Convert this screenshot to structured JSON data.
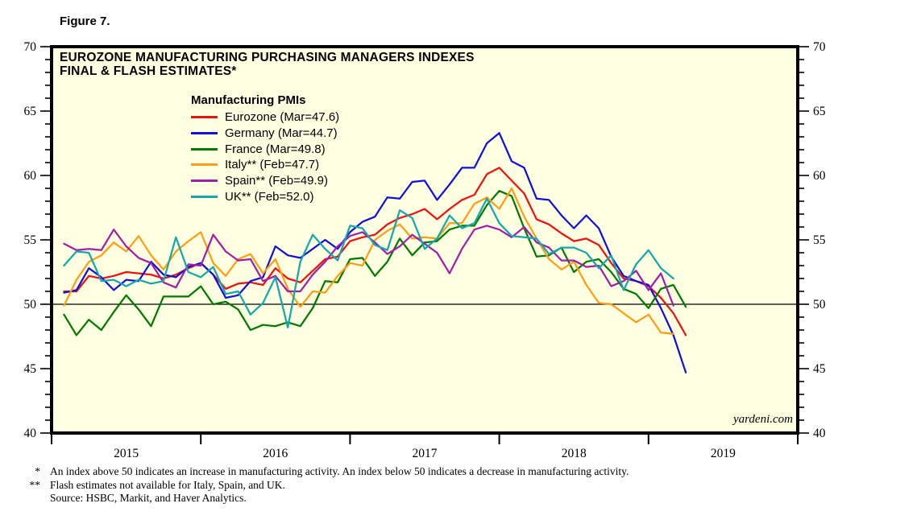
{
  "figure_label": "Figure 7.",
  "chart": {
    "title_line1": "EUROZONE MANUFACTURING PURCHASING MANAGERS INDEXES",
    "title_line2": "FINAL & FLASH ESTIMATES*",
    "legend_title": "Manufacturing PMIs",
    "watermark": "yardeni.com",
    "plot_background": "#FFFFE1",
    "border_color": "#000000",
    "fifty_line_value": 50
  },
  "chart_data": {
    "type": "line",
    "x_unit": "month",
    "x_span": [
      "2015-01",
      "2019-03"
    ],
    "x_axis_months_total": 60,
    "x_tick_years": [
      "2015",
      "2016",
      "2017",
      "2018",
      "2019"
    ],
    "ylim": [
      40,
      70
    ],
    "y_major_step": 5,
    "y_minor_step": 1,
    "grid": "single reference line at 50",
    "legend_position": "top-left inside plot",
    "series": [
      {
        "name": "Eurozone (Mar=47.6)",
        "color": "#EE1111",
        "values": [
          51.0,
          51.0,
          52.2,
          52.0,
          52.2,
          52.5,
          52.4,
          52.3,
          52.0,
          52.3,
          52.8,
          53.2,
          52.3,
          51.2,
          51.6,
          51.7,
          51.5,
          52.8,
          52.0,
          51.7,
          52.6,
          53.5,
          53.7,
          54.9,
          55.2,
          55.4,
          56.2,
          56.7,
          57.0,
          57.4,
          56.6,
          57.4,
          58.1,
          58.5,
          60.1,
          60.6,
          59.6,
          58.6,
          56.6,
          56.2,
          55.5,
          54.9,
          55.1,
          54.6,
          53.2,
          52.0,
          51.8,
          51.4,
          50.5,
          49.3,
          47.6
        ]
      },
      {
        "name": "Germany (Mar=44.7)",
        "color": "#1111DD",
        "values": [
          50.9,
          51.1,
          52.8,
          52.1,
          51.1,
          51.9,
          51.8,
          53.3,
          52.3,
          52.1,
          52.9,
          53.2,
          52.3,
          50.5,
          50.7,
          51.8,
          52.1,
          54.5,
          53.8,
          53.6,
          54.3,
          55.0,
          54.3,
          55.6,
          56.4,
          56.8,
          58.3,
          58.2,
          59.5,
          59.6,
          58.1,
          59.3,
          60.6,
          60.6,
          62.5,
          63.3,
          61.1,
          60.6,
          58.2,
          58.1,
          56.9,
          55.9,
          56.9,
          55.9,
          53.7,
          52.2,
          51.8,
          51.5,
          49.7,
          47.6,
          44.7
        ]
      },
      {
        "name": "France (Mar=49.8)",
        "color": "#007A00",
        "values": [
          49.2,
          47.6,
          48.8,
          48.0,
          49.4,
          50.7,
          49.6,
          48.3,
          50.6,
          50.6,
          50.6,
          51.4,
          50.0,
          50.2,
          49.6,
          48.0,
          48.4,
          48.3,
          48.6,
          48.3,
          49.7,
          51.8,
          51.7,
          53.5,
          53.6,
          52.2,
          53.3,
          55.1,
          53.8,
          54.8,
          54.9,
          55.8,
          56.1,
          56.1,
          57.7,
          58.8,
          58.4,
          55.9,
          53.7,
          53.8,
          54.4,
          52.5,
          53.3,
          53.5,
          52.5,
          51.2,
          50.8,
          49.7,
          51.2,
          51.5,
          49.8
        ]
      },
      {
        "name": "Italy** (Feb=47.7)",
        "color": "#FF9E14",
        "values": [
          49.9,
          51.9,
          53.3,
          53.8,
          54.8,
          54.1,
          55.3,
          53.8,
          52.7,
          54.1,
          54.9,
          55.6,
          53.2,
          52.2,
          53.5,
          53.9,
          52.4,
          53.5,
          51.2,
          49.8,
          51.0,
          50.9,
          52.2,
          53.2,
          53.0,
          55.0,
          55.7,
          56.2,
          55.1,
          55.2,
          55.1,
          56.3,
          56.3,
          57.8,
          58.3,
          57.4,
          59.0,
          56.8,
          55.1,
          53.5,
          52.7,
          53.3,
          51.5,
          50.1,
          50.0,
          49.3,
          48.6,
          49.2,
          47.8,
          47.7
        ]
      },
      {
        "name": "Spain** (Feb=49.9)",
        "color": "#A020A8",
        "values": [
          54.7,
          54.2,
          54.3,
          54.2,
          55.8,
          54.5,
          53.6,
          53.2,
          51.7,
          51.3,
          53.1,
          53.0,
          55.4,
          54.1,
          53.4,
          53.5,
          51.8,
          52.2,
          51.0,
          51.0,
          52.3,
          53.3,
          54.5,
          55.3,
          55.6,
          54.8,
          53.9,
          54.5,
          55.4,
          54.7,
          54.0,
          52.4,
          54.3,
          55.8,
          56.1,
          55.8,
          55.2,
          56.0,
          54.8,
          54.4,
          53.4,
          53.4,
          52.9,
          53.0,
          51.4,
          51.8,
          52.6,
          51.1,
          52.4,
          49.9
        ]
      },
      {
        "name": "UK** (Feb=52.0)",
        "color": "#14A8AC",
        "values": [
          53.0,
          54.1,
          54.0,
          51.8,
          51.9,
          51.4,
          51.9,
          51.6,
          51.8,
          55.2,
          52.5,
          52.1,
          52.9,
          50.8,
          51.0,
          49.2,
          50.1,
          52.1,
          48.2,
          53.3,
          55.4,
          54.3,
          53.4,
          56.1,
          55.9,
          54.6,
          54.2,
          57.3,
          56.7,
          54.3,
          55.1,
          56.9,
          55.9,
          56.3,
          58.2,
          56.3,
          55.3,
          55.2,
          55.1,
          53.9,
          54.4,
          54.4,
          54.0,
          52.8,
          53.8,
          51.1,
          53.1,
          54.2,
          52.8,
          52.0
        ]
      }
    ]
  },
  "footnotes": [
    {
      "marker": "*",
      "text": "An index above 50 indicates an increase in manufacturing activity. An index below 50 indicates a decrease in manufacturing activity."
    },
    {
      "marker": "**",
      "text": "Flash estimates not available for Italy, Spain, and UK."
    },
    {
      "marker": "",
      "text": "Source: HSBC, Markit, and Haver Analytics."
    }
  ]
}
